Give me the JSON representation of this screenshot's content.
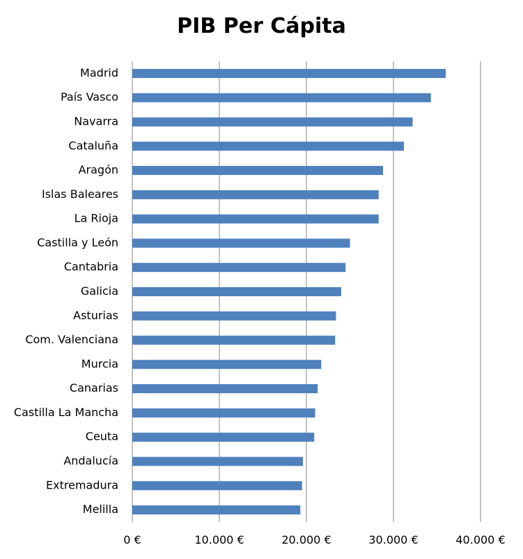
{
  "chart_data": {
    "type": "bar",
    "orientation": "horizontal",
    "title": "PIB Per Cápita",
    "xlabel": "",
    "ylabel": "",
    "categories": [
      "Madrid",
      "País Vasco",
      "Navarra",
      "Cataluña",
      "Aragón",
      "Islas Baleares",
      "La Rioja",
      "Castilla y León",
      "Cantabria",
      "Galicia",
      "Asturias",
      "Com. Valenciana",
      "Murcia",
      "Canarias",
      "Castilla La Mancha",
      "Ceuta",
      "Andalucía",
      "Extremadura",
      "Melilla"
    ],
    "values": [
      36000,
      34300,
      32200,
      31200,
      28800,
      28300,
      28300,
      25000,
      24500,
      24000,
      23400,
      23300,
      21700,
      21300,
      21000,
      20900,
      19600,
      19500,
      19300
    ],
    "xlim": [
      0,
      40000
    ],
    "xticks": [
      0,
      10000,
      20000,
      30000,
      40000
    ],
    "xtick_labels": [
      "0 €",
      "10.000 €",
      "20.000 €",
      "30.000 €",
      "40.000 €"
    ],
    "grid": "vertical",
    "legend": "none",
    "bar_color": "#4F81BD",
    "grid_color": "#868686"
  }
}
